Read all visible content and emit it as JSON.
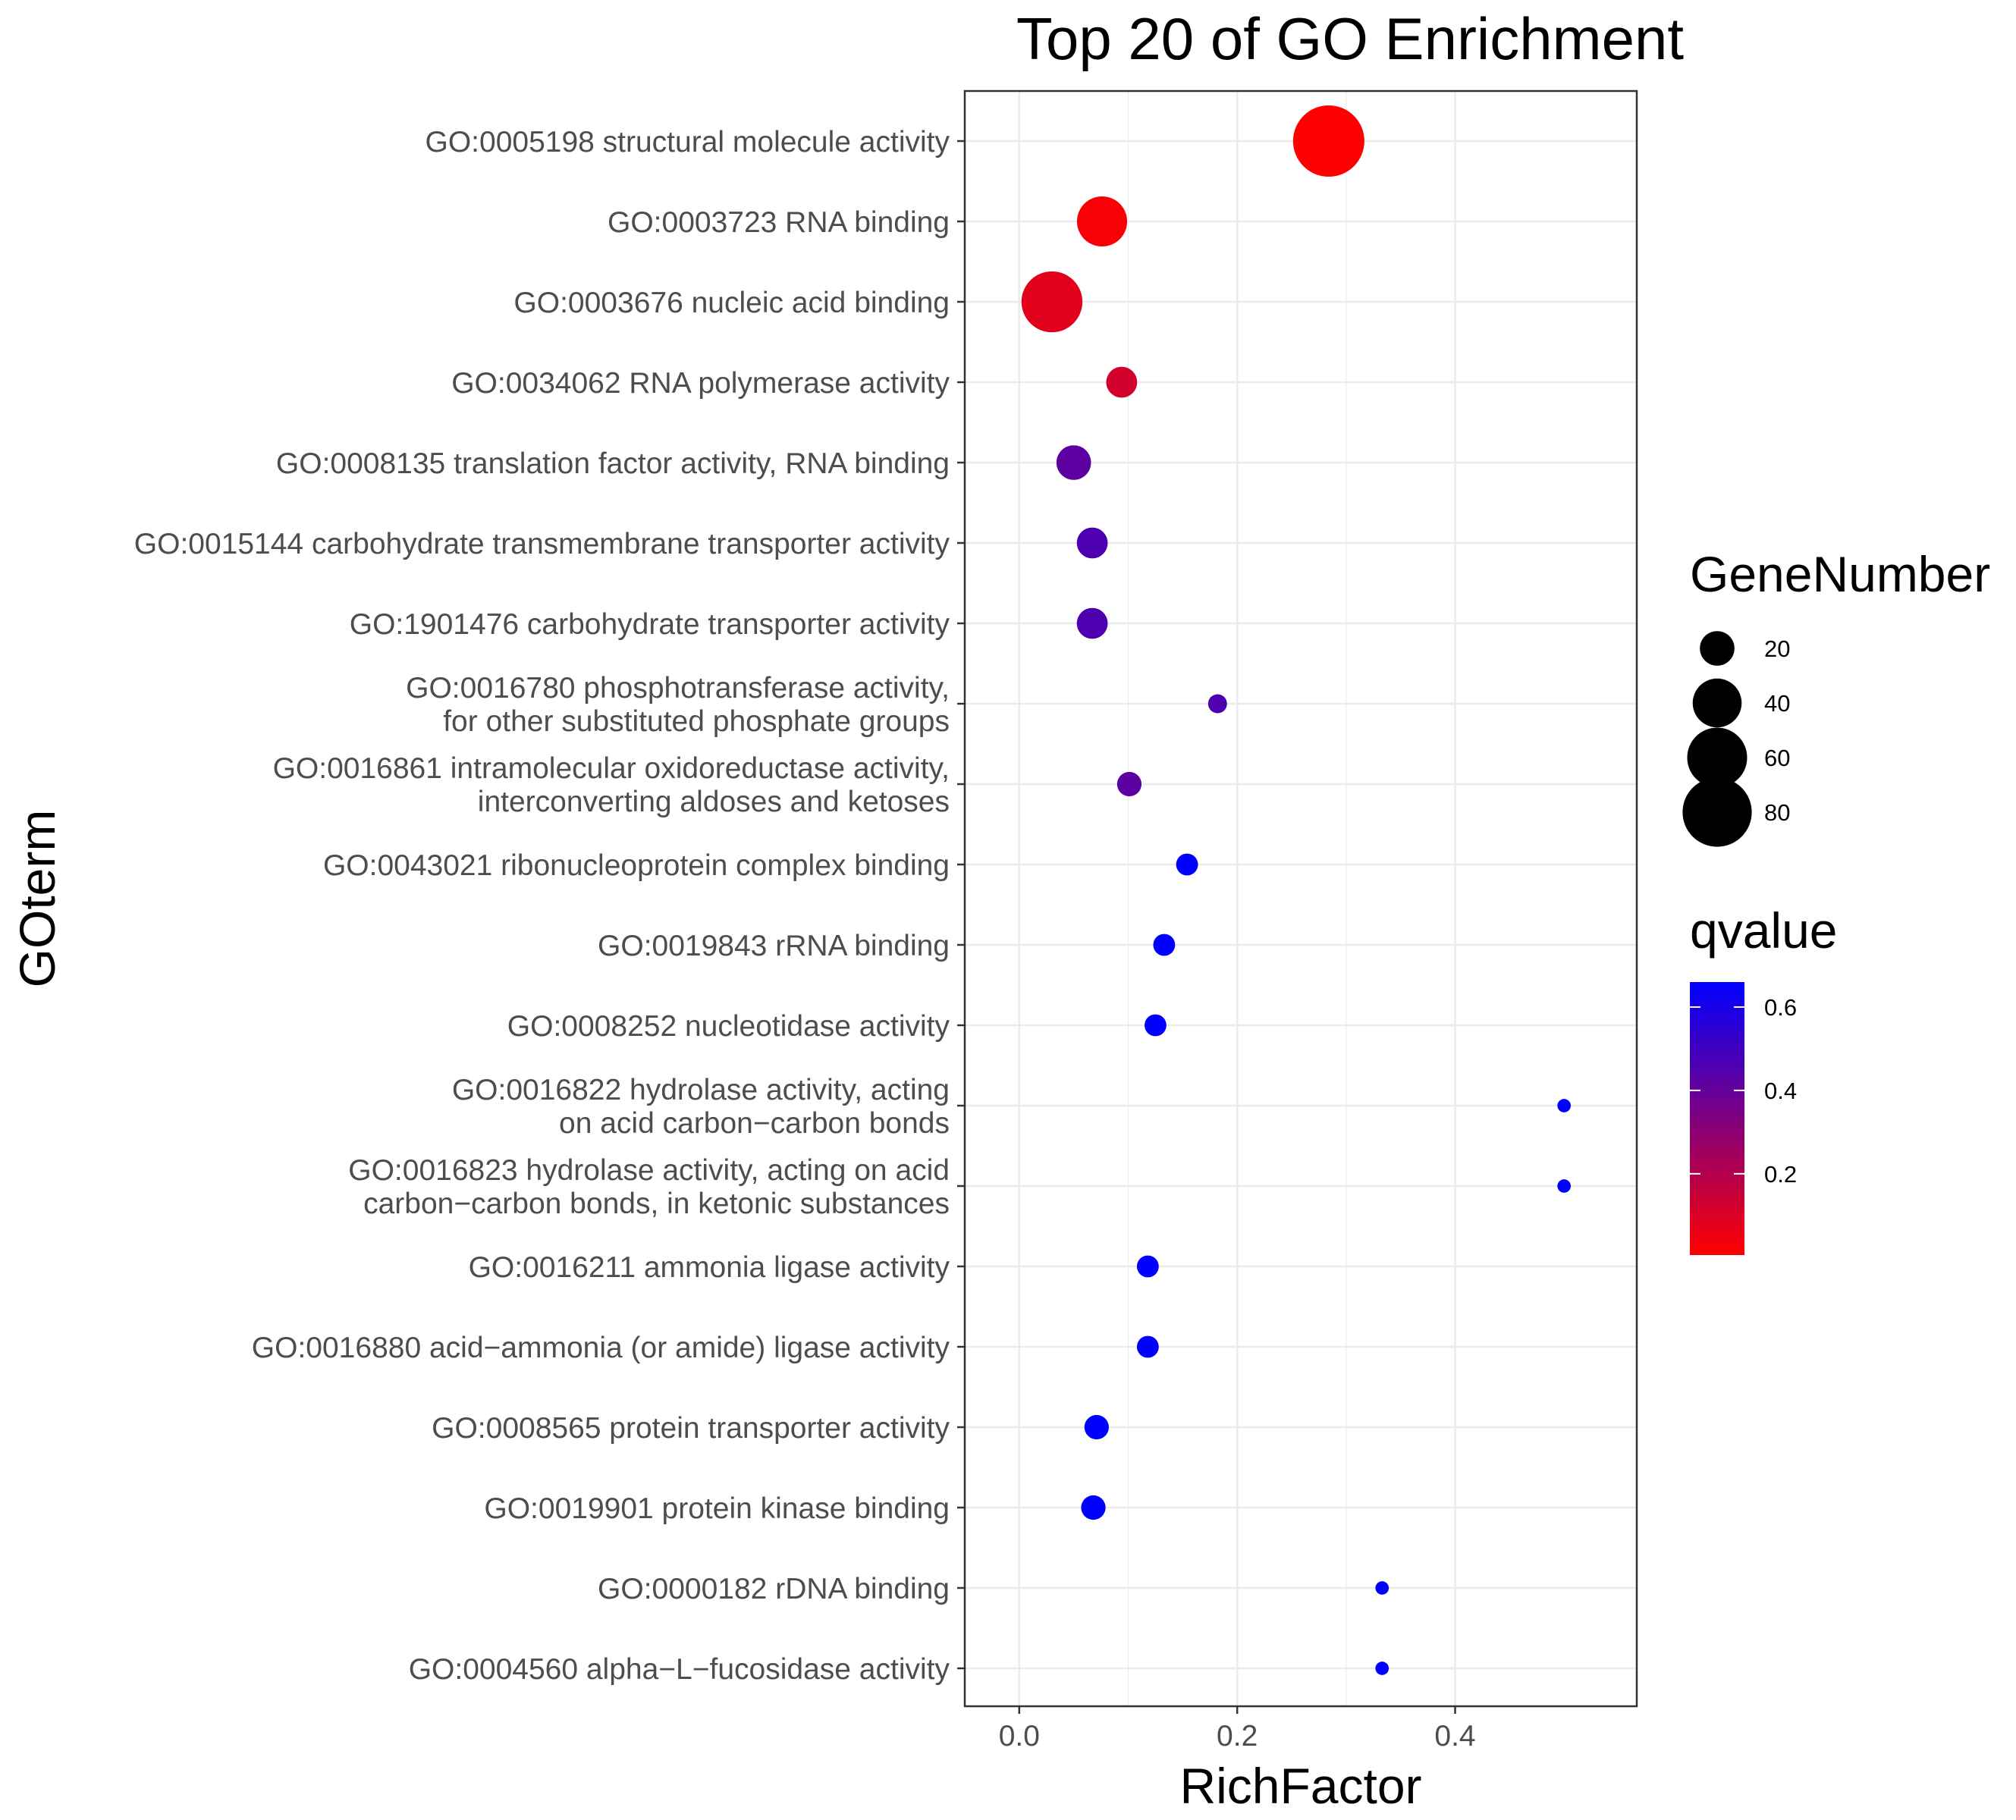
{
  "chart_data": {
    "type": "scatter",
    "title": "Top 20 of GO Enrichment",
    "xlabel": "RichFactor",
    "ylabel": "GOterm",
    "xlim": [
      -0.05,
      0.5667
    ],
    "x_ticks": [
      {
        "value": 0.0,
        "label": "0.0"
      },
      {
        "value": 0.2,
        "label": "0.2"
      },
      {
        "value": 0.4,
        "label": "0.4"
      }
    ],
    "grid": true,
    "size_legend": {
      "title": "GeneNumber",
      "position": "right",
      "entries": [
        {
          "value": 20,
          "label": "20"
        },
        {
          "value": 40,
          "label": "40"
        },
        {
          "value": 60,
          "label": "60"
        },
        {
          "value": 80,
          "label": "80"
        }
      ]
    },
    "color_legend": {
      "title": "qvalue",
      "position": "right",
      "low_color": "#ff0000",
      "high_color": "#0000ff",
      "range": [
        0.005,
        0.66
      ],
      "ticks": [
        {
          "value": 0.2,
          "label": "0.2"
        },
        {
          "value": 0.4,
          "label": "0.4"
        },
        {
          "value": 0.6,
          "label": "0.6"
        }
      ]
    },
    "points": [
      {
        "term": [
          "GO:0005198 structural molecule activity"
        ],
        "rich_factor": 0.284,
        "gene_number": 85,
        "qvalue": 0.005
      },
      {
        "term": [
          "GO:0003723 RNA binding"
        ],
        "rich_factor": 0.076,
        "gene_number": 42,
        "qvalue": 0.02
      },
      {
        "term": [
          "GO:0003676 nucleic acid binding"
        ],
        "rich_factor": 0.03,
        "gene_number": 62,
        "qvalue": 0.08
      },
      {
        "term": [
          "GO:0034062 RNA polymerase activity"
        ],
        "rich_factor": 0.094,
        "gene_number": 16,
        "qvalue": 0.12
      },
      {
        "term": [
          "GO:0008135 translation factor activity, RNA binding"
        ],
        "rich_factor": 0.05,
        "gene_number": 20,
        "qvalue": 0.42
      },
      {
        "term": [
          "GO:0015144 carbohydrate transmembrane transporter activity"
        ],
        "rich_factor": 0.067,
        "gene_number": 16,
        "qvalue": 0.46
      },
      {
        "term": [
          "GO:1901476 carbohydrate transporter activity"
        ],
        "rich_factor": 0.067,
        "gene_number": 16,
        "qvalue": 0.46
      },
      {
        "term": [
          "GO:0016780 phosphotransferase activity,",
          "for other substituted phosphate groups"
        ],
        "rich_factor": 0.182,
        "gene_number": 6,
        "qvalue": 0.46
      },
      {
        "term": [
          "GO:0016861 intramolecular oxidoreductase activity,",
          "interconverting aldoses and ketoses"
        ],
        "rich_factor": 0.101,
        "gene_number": 10,
        "qvalue": 0.42
      },
      {
        "term": [
          "GO:0043021 ribonucleoprotein complex binding"
        ],
        "rich_factor": 0.154,
        "gene_number": 8,
        "qvalue": 0.66
      },
      {
        "term": [
          "GO:0019843 rRNA binding"
        ],
        "rich_factor": 0.133,
        "gene_number": 8,
        "qvalue": 0.66
      },
      {
        "term": [
          "GO:0008252 nucleotidase activity"
        ],
        "rich_factor": 0.125,
        "gene_number": 8,
        "qvalue": 0.66
      },
      {
        "term": [
          "GO:0016822 hydrolase activity, acting",
          "on acid carbon−carbon bonds"
        ],
        "rich_factor": 0.5,
        "gene_number": 3,
        "qvalue": 0.66
      },
      {
        "term": [
          "GO:0016823 hydrolase activity, acting on acid",
          "carbon−carbon bonds, in ketonic substances"
        ],
        "rich_factor": 0.5,
        "gene_number": 3,
        "qvalue": 0.66
      },
      {
        "term": [
          "GO:0016211 ammonia ligase activity"
        ],
        "rich_factor": 0.118,
        "gene_number": 8,
        "qvalue": 0.66
      },
      {
        "term": [
          "GO:0016880 acid−ammonia (or amide) ligase activity"
        ],
        "rich_factor": 0.118,
        "gene_number": 8,
        "qvalue": 0.66
      },
      {
        "term": [
          "GO:0008565 protein transporter activity"
        ],
        "rich_factor": 0.071,
        "gene_number": 10,
        "qvalue": 0.66
      },
      {
        "term": [
          "GO:0019901 protein kinase binding"
        ],
        "rich_factor": 0.068,
        "gene_number": 10,
        "qvalue": 0.66
      },
      {
        "term": [
          "GO:0000182 rDNA binding"
        ],
        "rich_factor": 0.333,
        "gene_number": 3,
        "qvalue": 0.66
      },
      {
        "term": [
          "GO:0004560 alpha−L−fucosidase activity"
        ],
        "rich_factor": 0.333,
        "gene_number": 3,
        "qvalue": 0.66
      }
    ]
  }
}
